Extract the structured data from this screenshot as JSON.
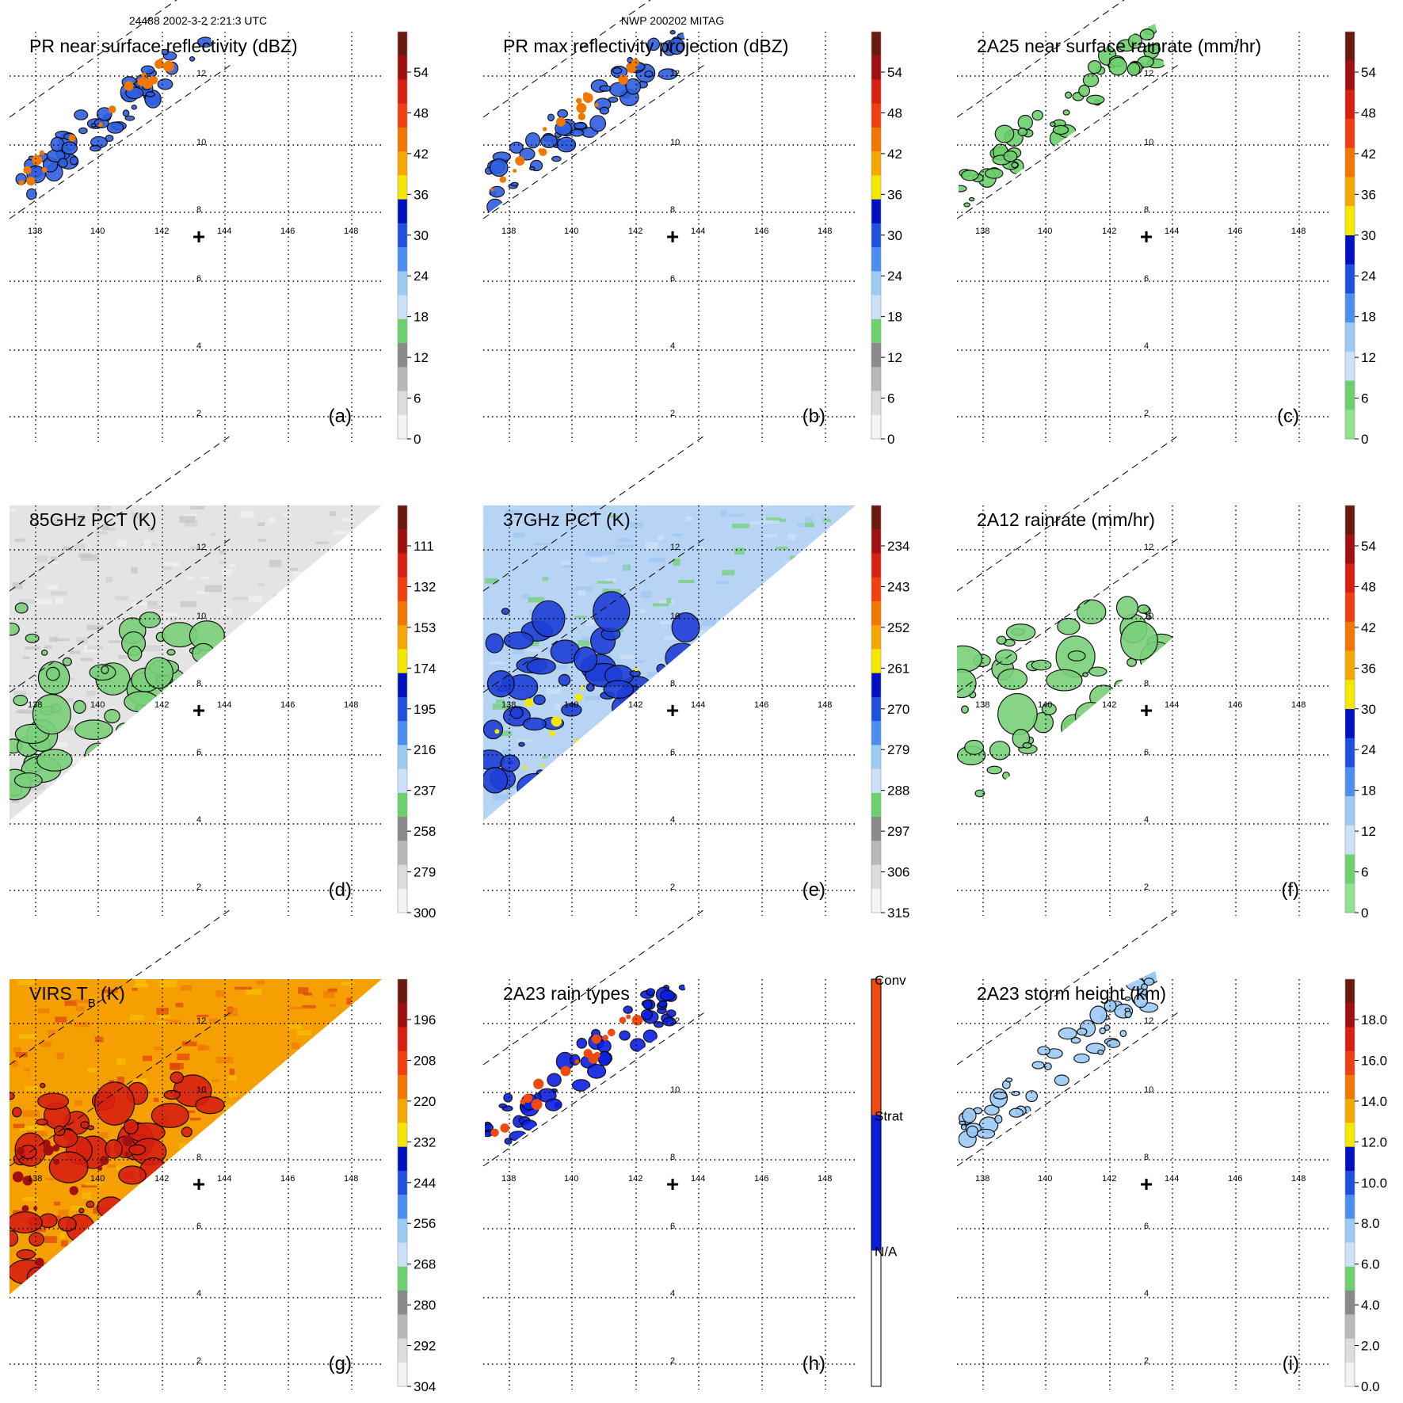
{
  "figure": {
    "header_left": "24488 2002-3-2 2:21:3 UTC",
    "header_center": "NWP 200202 MITAG"
  },
  "chart_data": [
    {
      "id": "a",
      "type": "heatmap",
      "title": "PR near surface reflectivity (dBZ)",
      "panel_label": "(a)",
      "coverage": "swath",
      "data_color": "#2f5fe0",
      "lon_ticks": [
        "138",
        "140",
        "142",
        "144",
        "146",
        "148"
      ],
      "lat_ticks": [
        "12",
        "10",
        "8",
        "6",
        "4",
        "2"
      ],
      "storm_center_marker": "+",
      "colorbar": {
        "type": "scale",
        "ticks": [
          "54",
          "48",
          "42",
          "36",
          "30",
          "24",
          "18",
          "12",
          "6",
          "0"
        ],
        "colors": [
          "#6b1a10",
          "#a01010",
          "#d82010",
          "#f04010",
          "#f07800",
          "#f5a800",
          "#f5e800",
          "#0010c0",
          "#2050e0",
          "#4a8ef0",
          "#9ccaf5",
          "#cce0f8",
          "#6cd06c",
          "#8a8a8a",
          "#b8b8b8",
          "#dcdcdc",
          "#f4f4f4"
        ]
      }
    },
    {
      "id": "b",
      "type": "heatmap",
      "title": "PR max reflectivity projection (dBZ)",
      "panel_label": "(b)",
      "coverage": "swath",
      "data_color": "#2f5fe0",
      "lon_ticks": [
        "138",
        "140",
        "142",
        "144",
        "146",
        "148"
      ],
      "lat_ticks": [
        "12",
        "10",
        "8",
        "6",
        "4",
        "2"
      ],
      "storm_center_marker": "+",
      "colorbar": {
        "type": "scale",
        "ticks": [
          "54",
          "48",
          "42",
          "36",
          "30",
          "24",
          "18",
          "12",
          "6",
          "0"
        ],
        "colors": [
          "#6b1a10",
          "#a01010",
          "#d82010",
          "#f04010",
          "#f07800",
          "#f5a800",
          "#f5e800",
          "#0010c0",
          "#2050e0",
          "#4a8ef0",
          "#9ccaf5",
          "#cce0f8",
          "#6cd06c",
          "#8a8a8a",
          "#b8b8b8",
          "#dcdcdc",
          "#f4f4f4"
        ]
      }
    },
    {
      "id": "c",
      "type": "heatmap",
      "title": "2A25 near surface rainrate (mm/hr)",
      "panel_label": "(c)",
      "coverage": "swath",
      "data_color": "#6cd06c",
      "lon_ticks": [
        "138",
        "140",
        "142",
        "144",
        "146",
        "148"
      ],
      "lat_ticks": [
        "12",
        "10",
        "8",
        "6",
        "4",
        "2"
      ],
      "storm_center_marker": "+",
      "colorbar": {
        "type": "scale",
        "ticks": [
          "54",
          "48",
          "42",
          "36",
          "30",
          "24",
          "18",
          "12",
          "6",
          "0"
        ],
        "colors": [
          "#6b1a10",
          "#a01010",
          "#d82010",
          "#f04010",
          "#f07800",
          "#f5a800",
          "#f5e800",
          "#0010c0",
          "#2050e0",
          "#4a8ef0",
          "#9ccaf5",
          "#cce0f8",
          "#6cd06c",
          "#90e090"
        ]
      }
    },
    {
      "id": "d",
      "type": "heatmap",
      "title": "85GHz PCT (K)",
      "panel_label": "(d)",
      "coverage": "full",
      "fill": "#e4e4e4",
      "data_color": "#7ad07a",
      "lon_ticks": [
        "138",
        "140",
        "142",
        "144",
        "146",
        "148"
      ],
      "lat_ticks": [
        "12",
        "10",
        "8",
        "6",
        "4",
        "2"
      ],
      "storm_center_marker": "+",
      "colorbar": {
        "type": "scale",
        "ticks": [
          "111",
          "132",
          "153",
          "174",
          "195",
          "216",
          "237",
          "258",
          "279",
          "300"
        ],
        "colors": [
          "#6b1a10",
          "#a01010",
          "#d82010",
          "#f04010",
          "#f07800",
          "#f5a800",
          "#f5e800",
          "#0010c0",
          "#2050e0",
          "#4a8ef0",
          "#9ccaf5",
          "#cce0f8",
          "#6cd06c",
          "#8a8a8a",
          "#b8b8b8",
          "#dcdcdc",
          "#f4f4f4"
        ]
      }
    },
    {
      "id": "e",
      "type": "heatmap",
      "title": "37GHz PCT (K)",
      "panel_label": "(e)",
      "coverage": "full",
      "fill": "#b7d4f4",
      "data_color": "#1e3fd8",
      "lon_ticks": [
        "138",
        "140",
        "142",
        "144",
        "146",
        "148"
      ],
      "lat_ticks": [
        "12",
        "10",
        "8",
        "6",
        "4",
        "2"
      ],
      "storm_center_marker": "+",
      "colorbar": {
        "type": "scale",
        "ticks": [
          "234",
          "243",
          "252",
          "261",
          "270",
          "279",
          "288",
          "297",
          "306",
          "315"
        ],
        "colors": [
          "#6b1a10",
          "#a01010",
          "#d82010",
          "#f04010",
          "#f07800",
          "#f5a800",
          "#f5e800",
          "#0010c0",
          "#2050e0",
          "#4a8ef0",
          "#9ccaf5",
          "#cce0f8",
          "#6cd06c",
          "#8a8a8a",
          "#b8b8b8",
          "#dcdcdc",
          "#f4f4f4"
        ]
      }
    },
    {
      "id": "f",
      "type": "heatmap",
      "title": "2A12 rainrate (mm/hr)",
      "panel_label": "(f)",
      "coverage": "full",
      "fill": "#ffffff",
      "data_color": "#7ad07a",
      "lon_ticks": [
        "138",
        "140",
        "142",
        "144",
        "146",
        "148"
      ],
      "lat_ticks": [
        "12",
        "10",
        "8",
        "6",
        "4",
        "2"
      ],
      "storm_center_marker": "+",
      "colorbar": {
        "type": "scale",
        "ticks": [
          "54",
          "48",
          "42",
          "36",
          "30",
          "24",
          "18",
          "12",
          "6",
          "0"
        ],
        "colors": [
          "#6b1a10",
          "#a01010",
          "#d82010",
          "#f04010",
          "#f07800",
          "#f5a800",
          "#f5e800",
          "#0010c0",
          "#2050e0",
          "#4a8ef0",
          "#9ccaf5",
          "#cce0f8",
          "#6cd06c",
          "#90e090"
        ]
      }
    },
    {
      "id": "g",
      "type": "heatmap",
      "title": "VIRS T",
      "title_sub": "B",
      "title_after": " (K)",
      "panel_label": "(g)",
      "coverage": "full",
      "fill": "#f5a000",
      "data_color": "#d82010",
      "lon_ticks": [
        "138",
        "140",
        "142",
        "144",
        "146",
        "148"
      ],
      "lat_ticks": [
        "12",
        "10",
        "8",
        "6",
        "4",
        "2"
      ],
      "storm_center_marker": "+",
      "colorbar": {
        "type": "scale",
        "ticks": [
          "196",
          "208",
          "220",
          "232",
          "244",
          "256",
          "268",
          "280",
          "292",
          "304"
        ],
        "colors": [
          "#6b1a10",
          "#a01010",
          "#d82010",
          "#f04010",
          "#f07800",
          "#f5a800",
          "#f5e800",
          "#0010c0",
          "#2050e0",
          "#4a8ef0",
          "#9ccaf5",
          "#cce0f8",
          "#6cd06c",
          "#8a8a8a",
          "#b8b8b8",
          "#dcdcdc",
          "#f4f4f4"
        ]
      }
    },
    {
      "id": "h",
      "type": "heatmap",
      "title": "2A23 rain types",
      "panel_label": "(h)",
      "coverage": "swath",
      "data_color": "#0a1ee0",
      "lon_ticks": [
        "138",
        "140",
        "142",
        "144",
        "146",
        "148"
      ],
      "lat_ticks": [
        "12",
        "10",
        "8",
        "6",
        "4",
        "2"
      ],
      "storm_center_marker": "+",
      "colorbar": {
        "type": "categorical",
        "labels": [
          "Conv",
          "Strat",
          "N/A"
        ],
        "colors": [
          "#f04a10",
          "#0a1ee0",
          "#ffffff"
        ]
      }
    },
    {
      "id": "i",
      "type": "heatmap",
      "title": "2A23 storm height (km)",
      "panel_label": "(i)",
      "coverage": "swath",
      "data_color": "#9ccaf5",
      "lon_ticks": [
        "138",
        "140",
        "142",
        "144",
        "146",
        "148"
      ],
      "lat_ticks": [
        "12",
        "10",
        "8",
        "6",
        "4",
        "2"
      ],
      "storm_center_marker": "+",
      "colorbar": {
        "type": "scale",
        "ticks": [
          "18.0",
          "16.0",
          "14.0",
          "12.0",
          "10.0",
          "8.0",
          "6.0",
          "4.0",
          "2.0",
          "0.0"
        ],
        "colors": [
          "#6b1a10",
          "#a01010",
          "#d82010",
          "#f04010",
          "#f07800",
          "#f5a800",
          "#f5e800",
          "#0010c0",
          "#2050e0",
          "#4a8ef0",
          "#9ccaf5",
          "#cce0f8",
          "#6cd06c",
          "#8a8a8a",
          "#b8b8b8",
          "#dcdcdc",
          "#f4f4f4"
        ]
      }
    }
  ]
}
